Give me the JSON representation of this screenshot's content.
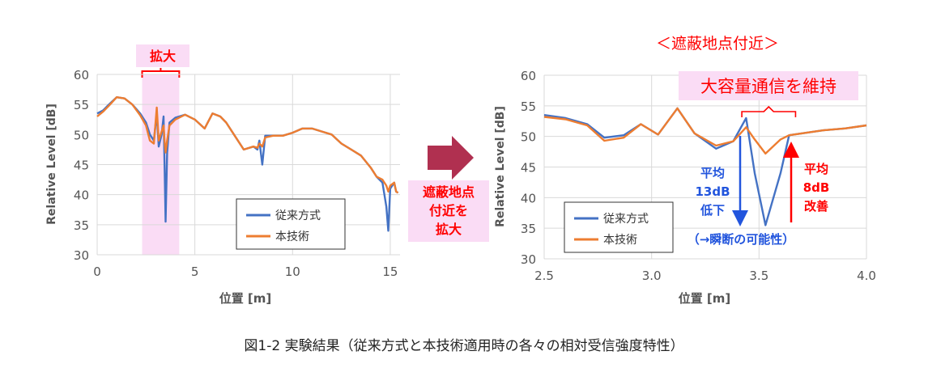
{
  "caption": "図1-2 実験結果（従来方式と本技術適用時の各々の相対受信強度特性）",
  "colors": {
    "conventional": "#4472c4",
    "proposed": "#ed7d31",
    "highlight_red": "#ff0000",
    "highlight_blue": "#2255dd",
    "pink_fill": "#fadcf5",
    "arrow": "#b03050"
  },
  "arrow_box": {
    "lines": [
      "遮蔽地点",
      "付近を",
      "拡大"
    ]
  },
  "chart_data": [
    {
      "type": "line",
      "xlabel": "位置 [m]",
      "ylabel": "Relative Level [dB]",
      "xlim": [
        0,
        15.5
      ],
      "ylim": [
        30,
        60
      ],
      "xticks": [
        "0",
        "5",
        "10",
        "15"
      ],
      "yticks": [
        "30",
        "35",
        "40",
        "45",
        "50",
        "55",
        "60"
      ],
      "grid": true,
      "legend": "bottom-right",
      "highlight": {
        "label": "拡大",
        "x_range": [
          2.3,
          4.2
        ]
      },
      "series": [
        {
          "name": "従来方式",
          "points": [
            [
              0,
              53.5
            ],
            [
              0.3,
              54
            ],
            [
              0.6,
              55
            ],
            [
              1.0,
              56.2
            ],
            [
              1.4,
              56
            ],
            [
              1.8,
              55
            ],
            [
              2.2,
              53.5
            ],
            [
              2.5,
              52
            ],
            [
              2.7,
              50
            ],
            [
              2.9,
              49
            ],
            [
              3.05,
              53.5
            ],
            [
              3.15,
              48
            ],
            [
              3.3,
              50
            ],
            [
              3.4,
              53
            ],
            [
              3.45,
              45
            ],
            [
              3.5,
              35.5
            ],
            [
              3.58,
              47
            ],
            [
              3.7,
              52
            ],
            [
              4.0,
              52.8
            ],
            [
              4.5,
              53.3
            ],
            [
              5.0,
              52.5
            ],
            [
              5.5,
              51
            ],
            [
              5.9,
              53.5
            ],
            [
              6.3,
              53
            ],
            [
              6.6,
              52
            ],
            [
              7.0,
              50
            ],
            [
              7.5,
              47.5
            ],
            [
              8.0,
              48
            ],
            [
              8.2,
              47.5
            ],
            [
              8.3,
              49
            ],
            [
              8.45,
              45
            ],
            [
              8.6,
              49.8
            ],
            [
              9.0,
              49.8
            ],
            [
              9.5,
              49.8
            ],
            [
              10.0,
              50.3
            ],
            [
              10.5,
              51
            ],
            [
              11.0,
              51
            ],
            [
              11.5,
              50.5
            ],
            [
              12.0,
              50
            ],
            [
              12.5,
              48.5
            ],
            [
              13.0,
              47.5
            ],
            [
              13.5,
              46.5
            ],
            [
              14.0,
              44.5
            ],
            [
              14.3,
              43
            ],
            [
              14.6,
              42
            ],
            [
              14.8,
              38
            ],
            [
              14.9,
              34
            ],
            [
              15.0,
              41
            ],
            [
              15.2,
              42
            ],
            [
              15.3,
              40.5
            ],
            [
              15.4,
              40.3
            ]
          ]
        },
        {
          "name": "本技術",
          "points": [
            [
              0,
              53
            ],
            [
              0.3,
              53.8
            ],
            [
              0.6,
              54.8
            ],
            [
              1.0,
              56.2
            ],
            [
              1.4,
              56
            ],
            [
              1.8,
              55
            ],
            [
              2.2,
              53.2
            ],
            [
              2.5,
              51.5
            ],
            [
              2.7,
              49
            ],
            [
              2.9,
              48.5
            ],
            [
              3.05,
              54.5
            ],
            [
              3.15,
              49
            ],
            [
              3.3,
              50.5
            ],
            [
              3.4,
              51.5
            ],
            [
              3.45,
              49
            ],
            [
              3.5,
              47
            ],
            [
              3.58,
              49
            ],
            [
              3.7,
              51.5
            ],
            [
              4.0,
              52.5
            ],
            [
              4.5,
              53.3
            ],
            [
              5.0,
              52.5
            ],
            [
              5.5,
              51
            ],
            [
              5.9,
              53.5
            ],
            [
              6.3,
              53
            ],
            [
              6.6,
              52
            ],
            [
              7.0,
              50
            ],
            [
              7.5,
              47.5
            ],
            [
              8.0,
              48
            ],
            [
              8.2,
              47.8
            ],
            [
              8.3,
              48.5
            ],
            [
              8.45,
              48
            ],
            [
              8.6,
              49.5
            ],
            [
              9.0,
              49.8
            ],
            [
              9.5,
              49.8
            ],
            [
              10.0,
              50.3
            ],
            [
              10.5,
              51
            ],
            [
              11.0,
              51
            ],
            [
              11.5,
              50.5
            ],
            [
              12.0,
              50
            ],
            [
              12.5,
              48.5
            ],
            [
              13.0,
              47.5
            ],
            [
              13.5,
              46.5
            ],
            [
              14.0,
              44.5
            ],
            [
              14.3,
              43
            ],
            [
              14.6,
              42.5
            ],
            [
              14.8,
              41.5
            ],
            [
              14.9,
              40.5
            ],
            [
              15.0,
              41.5
            ],
            [
              15.2,
              42
            ],
            [
              15.3,
              40.5
            ],
            [
              15.4,
              40.3
            ]
          ]
        }
      ]
    },
    {
      "type": "line",
      "title": "＜遮蔽地点付近＞",
      "xlabel": "位置 [m]",
      "ylabel": "Relative Level [dB]",
      "xlim": [
        2.5,
        4.0
      ],
      "ylim": [
        30,
        60
      ],
      "xticks": [
        "2.5",
        "3.0",
        "3.5",
        "4.0"
      ],
      "yticks": [
        "30",
        "35",
        "40",
        "45",
        "50",
        "55",
        "60"
      ],
      "grid": true,
      "legend": "bottom-left",
      "annotations": {
        "bracket_label": "大容量通信を維持",
        "bracket_x_range": [
          3.42,
          3.67
        ],
        "drop_label": [
          "平均",
          "13dB",
          "低下"
        ],
        "drop_note": "（→瞬断の可能性）",
        "improve_label": [
          "平均",
          "8dB",
          "改善"
        ]
      },
      "series": [
        {
          "name": "従来方式",
          "points": [
            [
              2.5,
              53.5
            ],
            [
              2.6,
              53
            ],
            [
              2.7,
              52
            ],
            [
              2.78,
              49.8
            ],
            [
              2.87,
              50.2
            ],
            [
              2.95,
              52
            ],
            [
              3.03,
              50.3
            ],
            [
              3.12,
              54.6
            ],
            [
              3.2,
              50.5
            ],
            [
              3.3,
              48
            ],
            [
              3.38,
              49.2
            ],
            [
              3.44,
              53
            ],
            [
              3.48,
              44
            ],
            [
              3.53,
              35.5
            ],
            [
              3.6,
              44
            ],
            [
              3.64,
              50.2
            ],
            [
              3.8,
              51
            ],
            [
              3.9,
              51.3
            ],
            [
              4.0,
              51.8
            ]
          ]
        },
        {
          "name": "本技術",
          "points": [
            [
              2.5,
              53.2
            ],
            [
              2.6,
              52.8
            ],
            [
              2.7,
              51.8
            ],
            [
              2.78,
              49.3
            ],
            [
              2.87,
              49.8
            ],
            [
              2.95,
              52
            ],
            [
              3.03,
              50.3
            ],
            [
              3.12,
              54.6
            ],
            [
              3.2,
              50.5
            ],
            [
              3.3,
              48.5
            ],
            [
              3.38,
              49.2
            ],
            [
              3.44,
              51.5
            ],
            [
              3.48,
              49.5
            ],
            [
              3.53,
              47.2
            ],
            [
              3.6,
              49.5
            ],
            [
              3.64,
              50.2
            ],
            [
              3.8,
              51
            ],
            [
              3.9,
              51.3
            ],
            [
              4.0,
              51.8
            ]
          ]
        }
      ]
    }
  ]
}
